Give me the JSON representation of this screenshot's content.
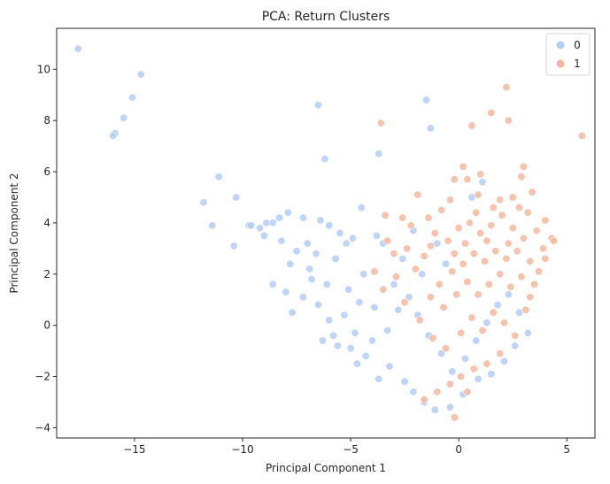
{
  "chart_data": {
    "type": "scatter",
    "title": "PCA: Return Clusters",
    "xlabel": "Principal Component 1",
    "ylabel": "Principal Component 2",
    "xlim": [
      -18.6,
      6.3
    ],
    "ylim": [
      -4.4,
      11.6
    ],
    "xticks": [
      -15,
      -10,
      -5,
      0,
      5
    ],
    "yticks": [
      -4,
      -2,
      0,
      2,
      4,
      6,
      8,
      10
    ],
    "xtick_labels": [
      "−15",
      "−10",
      "−5",
      "0",
      "5"
    ],
    "ytick_labels": [
      "−4",
      "−2",
      "0",
      "2",
      "4",
      "6",
      "8",
      "10"
    ],
    "grid": false,
    "legend_position": "top-right",
    "colors": {
      "0": "#b4ccf7",
      "1": "#f4b8a0"
    },
    "series": [
      {
        "name": "0",
        "color": "#b4ccf7",
        "points": [
          [
            -17.6,
            10.8
          ],
          [
            -14.7,
            9.8
          ],
          [
            -15.1,
            8.9
          ],
          [
            -15.5,
            8.1
          ],
          [
            -15.9,
            7.5
          ],
          [
            -16.0,
            7.4
          ],
          [
            -6.5,
            8.6
          ],
          [
            -1.5,
            8.8
          ],
          [
            -1.3,
            7.7
          ],
          [
            -3.7,
            6.7
          ],
          [
            -6.2,
            6.5
          ],
          [
            -11.1,
            5.8
          ],
          [
            -11.8,
            4.8
          ],
          [
            -10.3,
            5.0
          ],
          [
            -11.4,
            3.9
          ],
          [
            -9.7,
            3.9
          ],
          [
            -9.6,
            3.9
          ],
          [
            -10.4,
            3.1
          ],
          [
            -9.2,
            3.8
          ],
          [
            -8.9,
            4.0
          ],
          [
            -8.6,
            4.0
          ],
          [
            -8.3,
            4.2
          ],
          [
            -7.9,
            4.4
          ],
          [
            -7.2,
            4.2
          ],
          [
            -6.4,
            4.1
          ],
          [
            -6.0,
            3.9
          ],
          [
            -4.5,
            4.6
          ],
          [
            -8.2,
            3.3
          ],
          [
            -9.0,
            3.5
          ],
          [
            -7.8,
            2.4
          ],
          [
            -7.5,
            2.9
          ],
          [
            -7.0,
            3.2
          ],
          [
            -6.6,
            2.8
          ],
          [
            -8.6,
            1.6
          ],
          [
            -8.0,
            1.3
          ],
          [
            -7.7,
            0.5
          ],
          [
            -7.2,
            1.1
          ],
          [
            -6.9,
            2.2
          ],
          [
            -5.5,
            3.6
          ],
          [
            -5.2,
            3.2
          ],
          [
            -4.9,
            3.4
          ],
          [
            -3.8,
            3.5
          ],
          [
            -3.5,
            3.2
          ],
          [
            -2.1,
            3.7
          ],
          [
            -1.0,
            3.2
          ],
          [
            -6.3,
            -0.6
          ],
          [
            -6.1,
            1.6
          ],
          [
            -5.6,
            -0.8
          ],
          [
            -4.8,
            -0.3
          ],
          [
            -4.3,
            -1.2
          ],
          [
            -3.7,
            -2.1
          ],
          [
            -3.2,
            -1.6
          ],
          [
            -2.5,
            -2.2
          ],
          [
            -2.1,
            -2.6
          ],
          [
            -1.6,
            -3.0
          ],
          [
            -1.1,
            -3.3
          ],
          [
            -0.4,
            -3.2
          ],
          [
            0.2,
            -2.7
          ],
          [
            0.9,
            -2.1
          ],
          [
            -5.7,
            2.6
          ],
          [
            -5.1,
            1.4
          ],
          [
            -4.4,
            2.0
          ],
          [
            -3.9,
            0.7
          ],
          [
            -4.6,
            0.9
          ],
          [
            -5.3,
            0.4
          ],
          [
            -4.0,
            -0.6
          ],
          [
            -3.3,
            -0.2
          ],
          [
            -2.8,
            0.6
          ],
          [
            -2.3,
            1.1
          ],
          [
            -1.9,
            0.4
          ],
          [
            -1.4,
            -0.4
          ],
          [
            -0.8,
            -1.1
          ],
          [
            -0.3,
            -1.8
          ],
          [
            0.3,
            -1.3
          ],
          [
            0.8,
            -0.6
          ],
          [
            1.3,
            0.1
          ],
          [
            1.8,
            0.8
          ],
          [
            2.3,
            1.2
          ],
          [
            2.8,
            0.5
          ],
          [
            3.2,
            -0.3
          ],
          [
            2.6,
            -0.8
          ],
          [
            2.1,
            -1.4
          ],
          [
            1.5,
            -1.9
          ],
          [
            1.1,
            5.6
          ],
          [
            0.6,
            5.0
          ],
          [
            -0.6,
            2.4
          ],
          [
            -1.7,
            2.0
          ],
          [
            -2.6,
            2.6
          ],
          [
            -3.0,
            1.6
          ],
          [
            -6.8,
            1.8
          ],
          [
            -6.5,
            0.8
          ],
          [
            -6.0,
            0.2
          ],
          [
            -5.8,
            -0.4
          ],
          [
            -5.0,
            -0.9
          ],
          [
            -4.7,
            -1.5
          ]
        ]
      },
      {
        "name": "1",
        "color": "#f4b8a0",
        "points": [
          [
            2.2,
            9.3
          ],
          [
            5.7,
            7.4
          ],
          [
            -3.6,
            7.9
          ],
          [
            0.6,
            7.8
          ],
          [
            1.5,
            8.3
          ],
          [
            2.3,
            8.0
          ],
          [
            2.9,
            5.8
          ],
          [
            3.0,
            6.2
          ],
          [
            0.2,
            6.2
          ],
          [
            0.4,
            5.7
          ],
          [
            -0.2,
            5.7
          ],
          [
            1.0,
            5.9
          ],
          [
            -1.9,
            5.1
          ],
          [
            -0.4,
            4.9
          ],
          [
            0.9,
            5.1
          ],
          [
            3.4,
            5.2
          ],
          [
            2.5,
            5.0
          ],
          [
            1.9,
            4.9
          ],
          [
            -3.4,
            4.3
          ],
          [
            -2.6,
            4.2
          ],
          [
            -1.4,
            4.2
          ],
          [
            -0.8,
            4.5
          ],
          [
            4.0,
            4.1
          ],
          [
            4.3,
            3.4
          ],
          [
            4.4,
            3.3
          ],
          [
            4.0,
            2.6
          ],
          [
            3.7,
            2.1
          ],
          [
            3.5,
            1.6
          ],
          [
            3.3,
            1.1
          ],
          [
            3.1,
            0.6
          ],
          [
            -3.3,
            3.3
          ],
          [
            -3.0,
            2.8
          ],
          [
            -2.4,
            3.0
          ],
          [
            -2.0,
            2.2
          ],
          [
            -1.6,
            2.7
          ],
          [
            -1.1,
            3.6
          ],
          [
            -0.5,
            3.3
          ],
          [
            0.0,
            3.8
          ],
          [
            0.5,
            4.0
          ],
          [
            1.0,
            3.6
          ],
          [
            1.5,
            3.9
          ],
          [
            2.0,
            4.3
          ],
          [
            2.5,
            3.8
          ],
          [
            3.0,
            3.4
          ],
          [
            2.7,
            2.9
          ],
          [
            2.2,
            2.6
          ],
          [
            1.7,
            2.9
          ],
          [
            1.2,
            2.5
          ],
          [
            0.7,
            2.8
          ],
          [
            0.2,
            2.4
          ],
          [
            -0.3,
            2.1
          ],
          [
            -0.9,
            1.6
          ],
          [
            -1.3,
            1.1
          ],
          [
            -0.7,
            0.7
          ],
          [
            -0.1,
            1.2
          ],
          [
            0.4,
            1.7
          ],
          [
            0.9,
            1.2
          ],
          [
            1.4,
            1.6
          ],
          [
            1.9,
            2.0
          ],
          [
            2.4,
            1.5
          ],
          [
            2.9,
            1.9
          ],
          [
            3.3,
            2.5
          ],
          [
            -3.9,
            2.1
          ],
          [
            -3.5,
            1.4
          ],
          [
            -2.9,
            1.9
          ],
          [
            -2.5,
            0.9
          ],
          [
            -1.8,
            0.2
          ],
          [
            -1.2,
            -0.5
          ],
          [
            -0.6,
            -0.9
          ],
          [
            0.1,
            -0.3
          ],
          [
            0.6,
            0.3
          ],
          [
            1.1,
            -0.2
          ],
          [
            1.6,
            0.5
          ],
          [
            2.1,
            0.1
          ],
          [
            2.6,
            -0.4
          ],
          [
            1.9,
            -1.1
          ],
          [
            1.3,
            -1.5
          ],
          [
            0.7,
            -1.7
          ],
          [
            0.1,
            -2.0
          ],
          [
            -0.4,
            -2.3
          ],
          [
            -1.0,
            -2.6
          ],
          [
            -1.6,
            -2.9
          ],
          [
            -0.2,
            -3.6
          ],
          [
            0.4,
            -2.6
          ],
          [
            3.9,
            3.0
          ],
          [
            3.6,
            3.7
          ],
          [
            3.2,
            4.4
          ],
          [
            2.8,
            4.6
          ],
          [
            1.6,
            4.6
          ],
          [
            0.8,
            4.4
          ],
          [
            -2.2,
            3.9
          ],
          [
            -1.3,
            3.1
          ],
          [
            -0.2,
            2.8
          ],
          [
            0.3,
            3.2
          ],
          [
            1.3,
            3.3
          ],
          [
            2.3,
            3.2
          ]
        ]
      }
    ]
  }
}
